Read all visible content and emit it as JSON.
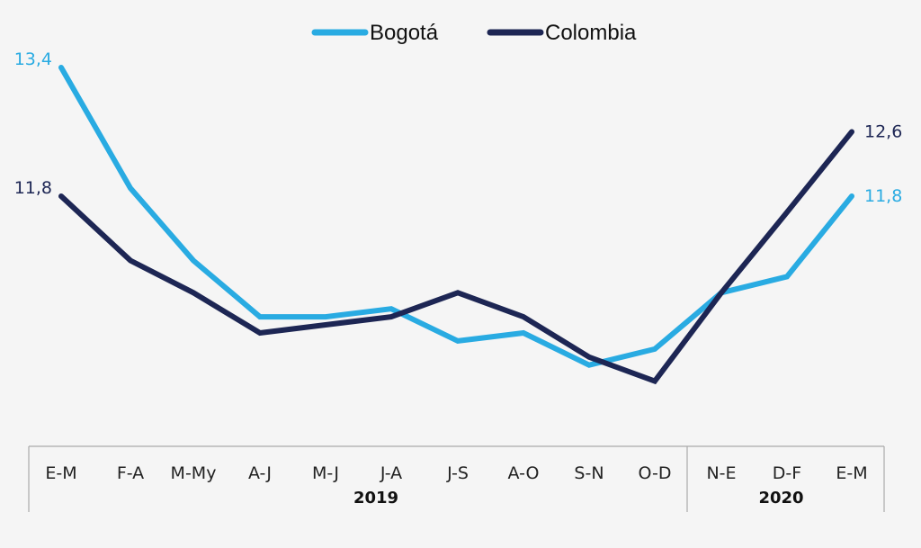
{
  "chart_data": {
    "type": "line",
    "title": "",
    "xlabel": "",
    "ylabel": "",
    "ylim": [
      9,
      14
    ],
    "grid": false,
    "legend_position": "top-center",
    "categories": [
      "E-M",
      "F-A",
      "M-My",
      "A-J",
      "M-J",
      "J-A",
      "J-S",
      "A-O",
      "S-N",
      "O-D",
      "N-E",
      "D-F",
      "E-M"
    ],
    "groups": [
      {
        "label": "2019",
        "start": 0,
        "end": 9
      },
      {
        "label": "2020",
        "start": 10,
        "end": 12
      }
    ],
    "series": [
      {
        "name": "Bogotá",
        "color": "#29abe2",
        "values": [
          13.4,
          11.9,
          11.0,
          10.3,
          10.3,
          10.4,
          10.0,
          10.1,
          9.7,
          9.9,
          10.6,
          10.8,
          11.8
        ],
        "labels": {
          "first": "13,4",
          "last": "11,8"
        }
      },
      {
        "name": "Colombia",
        "color": "#1d2654",
        "values": [
          11.8,
          11.0,
          10.6,
          10.1,
          10.2,
          10.3,
          10.6,
          10.3,
          9.8,
          9.5,
          10.6,
          11.6,
          12.6
        ],
        "labels": {
          "first": "11,8",
          "last": "12,6"
        }
      }
    ]
  }
}
